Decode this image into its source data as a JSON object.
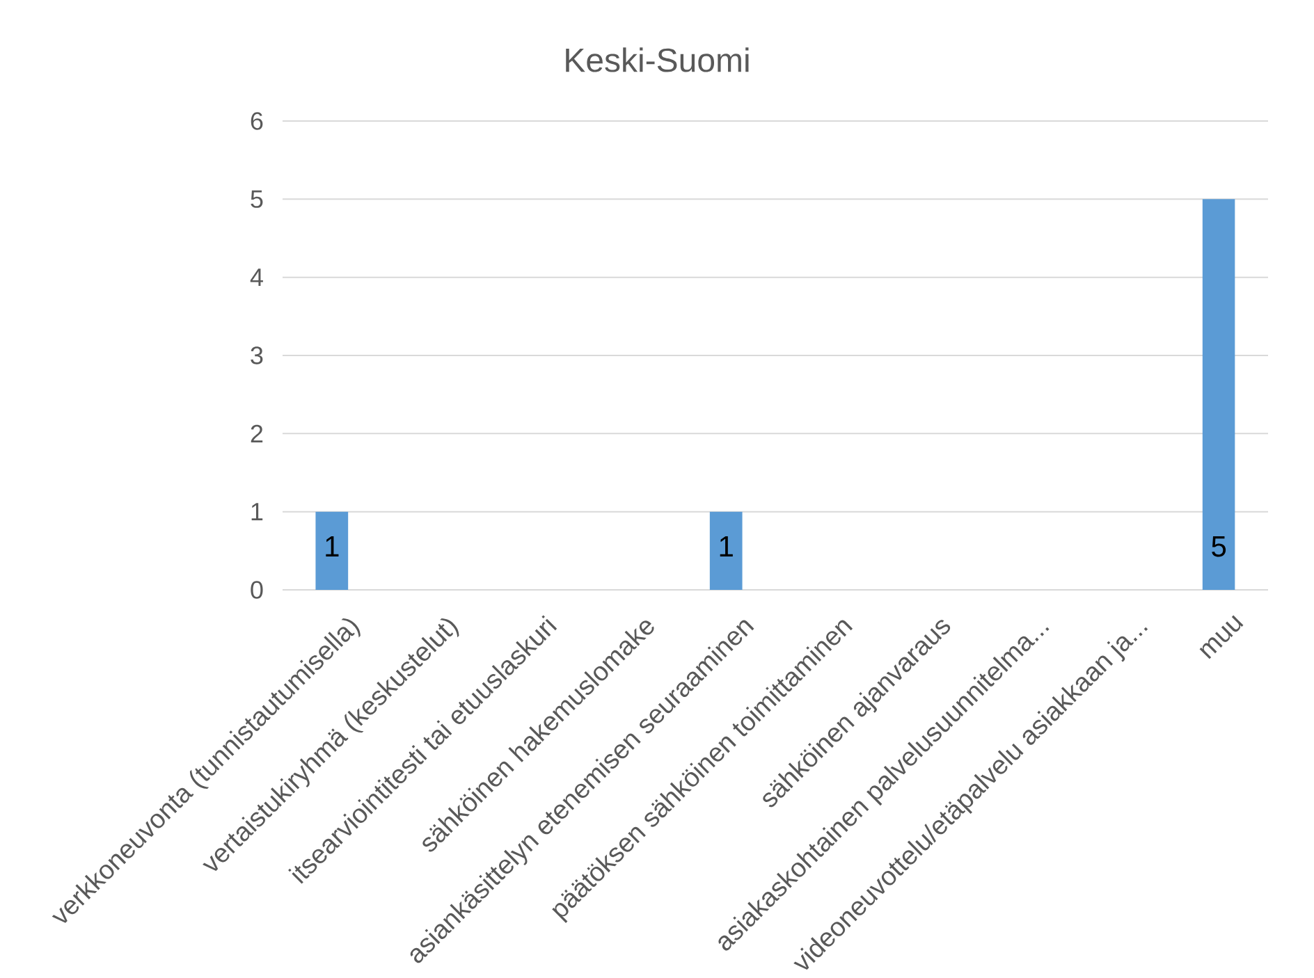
{
  "chart_data": {
    "type": "bar",
    "title": "Keski-Suomi",
    "categories": [
      "verkkoneuvonta (tunnistautumisella)",
      "vertaistukiryhmä (keskustelut)",
      "itsearviointitesti tai etuuslaskuri",
      "sähköinen hakemuslomake",
      "asiankäsittelyn etenemisen seuraaminen",
      "päätöksen sähköinen toimittaminen",
      "sähköinen ajanvaraus",
      "asiakaskohtainen palvelusuunnitelma...",
      "videoneuvottelu/etäpalvelu asiakkaan ja...",
      "muu"
    ],
    "values": [
      1,
      0,
      0,
      0,
      1,
      0,
      0,
      0,
      0,
      5
    ],
    "color": "#5b9bd5",
    "ylim": [
      0,
      6
    ],
    "yticks": [
      0,
      1,
      2,
      3,
      4,
      5,
      6
    ],
    "grid": "y",
    "value_labels": [
      "1",
      null,
      null,
      null,
      "1",
      null,
      null,
      null,
      null,
      "5"
    ]
  }
}
